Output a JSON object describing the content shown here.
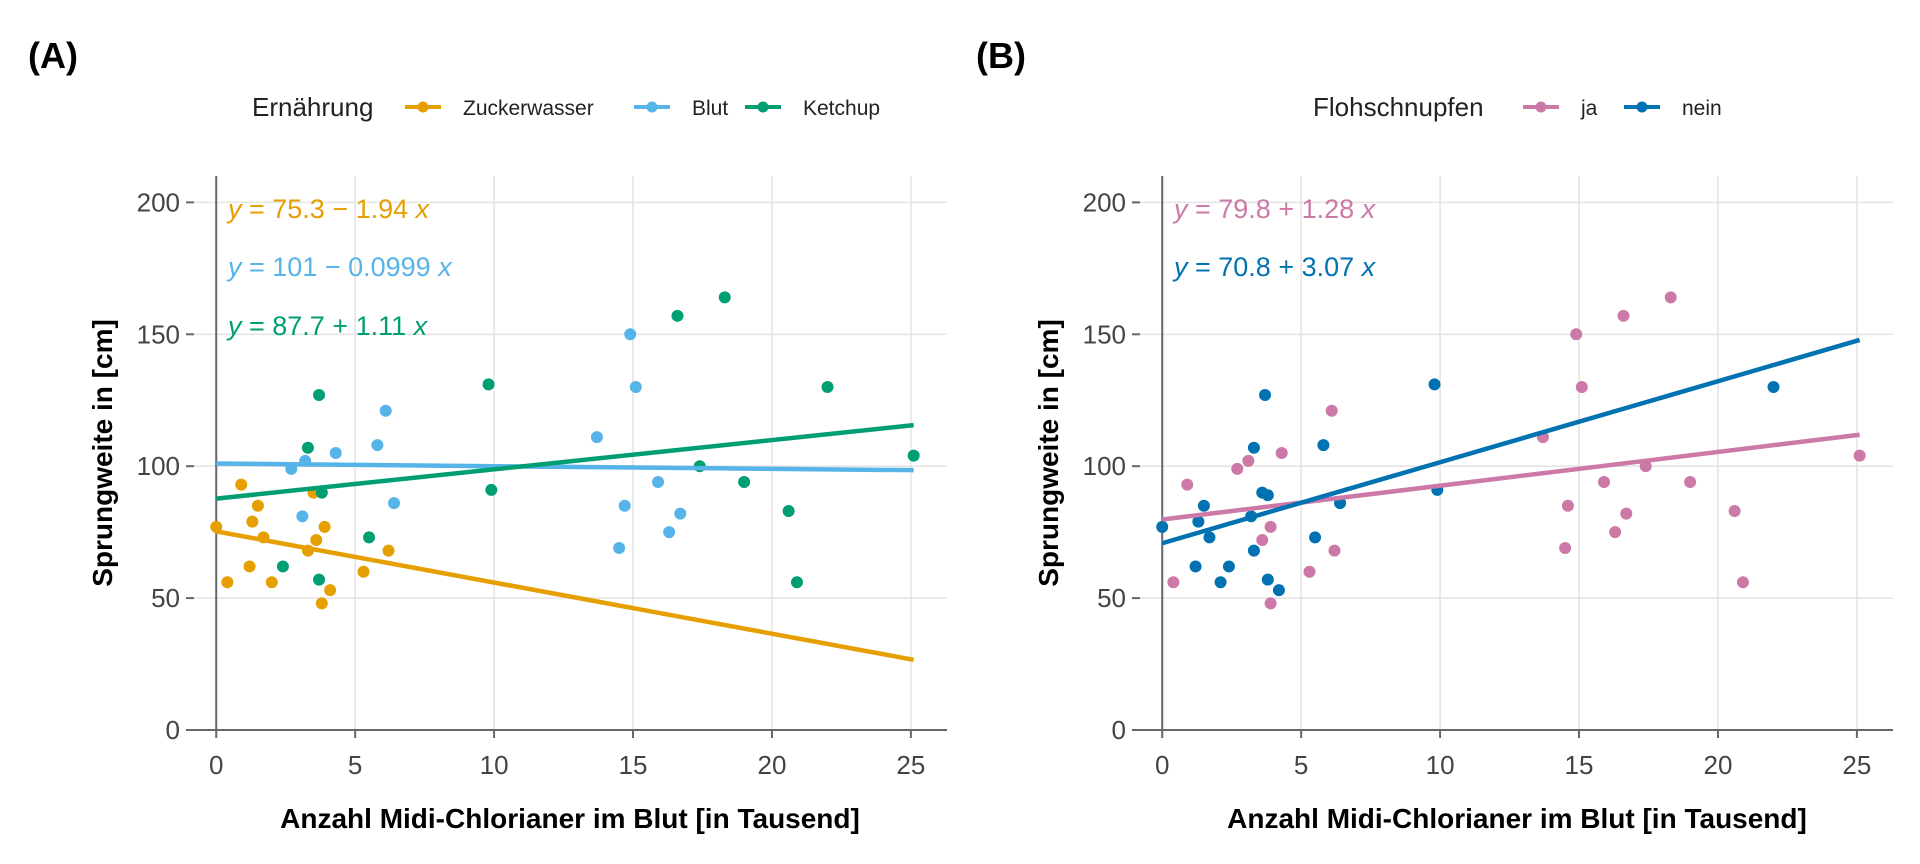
{
  "chart_data": [
    {
      "type": "scatter",
      "panel_tag": "(A)",
      "xlabel": "Anzahl Midi-Chlorianer im Blut [in Tausend]",
      "ylabel": "Sprungweite in [cm]",
      "xlim": [
        -0.8,
        26.3
      ],
      "ylim": [
        0,
        210
      ],
      "xticks": [
        0,
        5,
        10,
        15,
        20,
        25
      ],
      "yticks": [
        0,
        50,
        100,
        150,
        200
      ],
      "grid": true,
      "legend": {
        "title": "Ernährung",
        "position": "top"
      },
      "series": [
        {
          "name": "Zuckerwasser",
          "color": "#E69F00",
          "points": [
            [
              0,
              77
            ],
            [
              0.4,
              56
            ],
            [
              0.9,
              93
            ],
            [
              1.2,
              62
            ],
            [
              1.3,
              79
            ],
            [
              1.5,
              85
            ],
            [
              1.7,
              73
            ],
            [
              2.0,
              56
            ],
            [
              3.3,
              68
            ],
            [
              3.5,
              90
            ],
            [
              3.6,
              72
            ],
            [
              3.8,
              48
            ],
            [
              3.9,
              77
            ],
            [
              4.1,
              53
            ],
            [
              5.3,
              60
            ],
            [
              6.2,
              68
            ]
          ],
          "fit": {
            "intercept": 75.3,
            "slope": -1.94,
            "x_range": [
              0,
              25.1
            ]
          },
          "equation": {
            "lhs": "y",
            "rhs": " = 75.3 − 1.94 ",
            "var": "x"
          }
        },
        {
          "name": "Blut",
          "color": "#56B4E9",
          "points": [
            [
              2.7,
              99
            ],
            [
              3.1,
              81
            ],
            [
              3.2,
              102
            ],
            [
              4.3,
              105
            ],
            [
              5.8,
              108
            ],
            [
              6.1,
              121
            ],
            [
              6.4,
              86
            ],
            [
              13.7,
              111
            ],
            [
              14.5,
              69
            ],
            [
              14.7,
              85
            ],
            [
              14.9,
              150
            ],
            [
              15.1,
              130
            ],
            [
              15.9,
              94
            ],
            [
              16.3,
              75
            ],
            [
              16.7,
              82
            ]
          ],
          "fit": {
            "intercept": 101,
            "slope": -0.0999,
            "x_range": [
              0,
              25.1
            ]
          },
          "equation": {
            "lhs": "y",
            "rhs": " = 101 − 0.0999 ",
            "var": "x"
          }
        },
        {
          "name": "Ketchup",
          "color": "#009E73",
          "points": [
            [
              2.4,
              62
            ],
            [
              3.3,
              107
            ],
            [
              3.7,
              127
            ],
            [
              3.8,
              90
            ],
            [
              3.7,
              57
            ],
            [
              5.5,
              73
            ],
            [
              9.8,
              131
            ],
            [
              9.9,
              91
            ],
            [
              16.6,
              157
            ],
            [
              17.4,
              100
            ],
            [
              18.3,
              164
            ],
            [
              19.0,
              94
            ],
            [
              20.6,
              83
            ],
            [
              20.9,
              56
            ],
            [
              22.0,
              130
            ],
            [
              25.1,
              104
            ]
          ],
          "fit": {
            "intercept": 87.7,
            "slope": 1.11,
            "x_range": [
              0,
              25.1
            ]
          },
          "equation": {
            "lhs": "y",
            "rhs": " = 87.7 + 1.11 ",
            "var": "x"
          }
        }
      ]
    },
    {
      "type": "scatter",
      "panel_tag": "(B)",
      "xlabel": "Anzahl Midi-Chlorianer im Blut [in Tausend]",
      "ylabel": "Sprungweite in [cm]",
      "xlim": [
        -0.8,
        26.3
      ],
      "ylim": [
        0,
        210
      ],
      "xticks": [
        0,
        5,
        10,
        15,
        20,
        25
      ],
      "yticks": [
        0,
        50,
        100,
        150,
        200
      ],
      "grid": true,
      "legend": {
        "title": "Flohschnupfen",
        "position": "top"
      },
      "series": [
        {
          "name": "ja",
          "color": "#CC79A7",
          "points": [
            [
              0.4,
              56
            ],
            [
              0.9,
              93
            ],
            [
              2.7,
              99
            ],
            [
              3.1,
              102
            ],
            [
              3.6,
              72
            ],
            [
              3.9,
              48
            ],
            [
              3.9,
              77
            ],
            [
              4.3,
              105
            ],
            [
              5.3,
              60
            ],
            [
              6.1,
              121
            ],
            [
              6.2,
              68
            ],
            [
              13.7,
              111
            ],
            [
              14.5,
              69
            ],
            [
              14.6,
              85
            ],
            [
              14.9,
              150
            ],
            [
              15.1,
              130
            ],
            [
              15.9,
              94
            ],
            [
              16.3,
              75
            ],
            [
              16.6,
              157
            ],
            [
              16.7,
              82
            ],
            [
              17.4,
              100
            ],
            [
              18.3,
              164
            ],
            [
              19.0,
              94
            ],
            [
              20.6,
              83
            ],
            [
              20.9,
              56
            ],
            [
              25.1,
              104
            ]
          ],
          "fit": {
            "intercept": 79.8,
            "slope": 1.28,
            "x_range": [
              0,
              25.1
            ]
          },
          "equation": {
            "lhs": "y",
            "rhs": " = 79.8 + 1.28 ",
            "var": "x"
          }
        },
        {
          "name": "nein",
          "color": "#0072B2",
          "points": [
            [
              0,
              77
            ],
            [
              1.2,
              62
            ],
            [
              1.3,
              79
            ],
            [
              1.5,
              85
            ],
            [
              1.7,
              73
            ],
            [
              2.1,
              56
            ],
            [
              2.4,
              62
            ],
            [
              3.2,
              81
            ],
            [
              3.3,
              107
            ],
            [
              3.3,
              68
            ],
            [
              3.6,
              90
            ],
            [
              3.7,
              127
            ],
            [
              3.8,
              89
            ],
            [
              3.8,
              57
            ],
            [
              4.2,
              53
            ],
            [
              5.5,
              73
            ],
            [
              5.8,
              108
            ],
            [
              6.4,
              86
            ],
            [
              9.8,
              131
            ],
            [
              9.9,
              91
            ],
            [
              22.0,
              130
            ]
          ],
          "fit": {
            "intercept": 70.8,
            "slope": 3.07,
            "x_range": [
              0,
              25.1
            ]
          },
          "equation": {
            "lhs": "y",
            "rhs": " = 70.8 + 3.07 ",
            "var": "x"
          }
        }
      ]
    }
  ]
}
